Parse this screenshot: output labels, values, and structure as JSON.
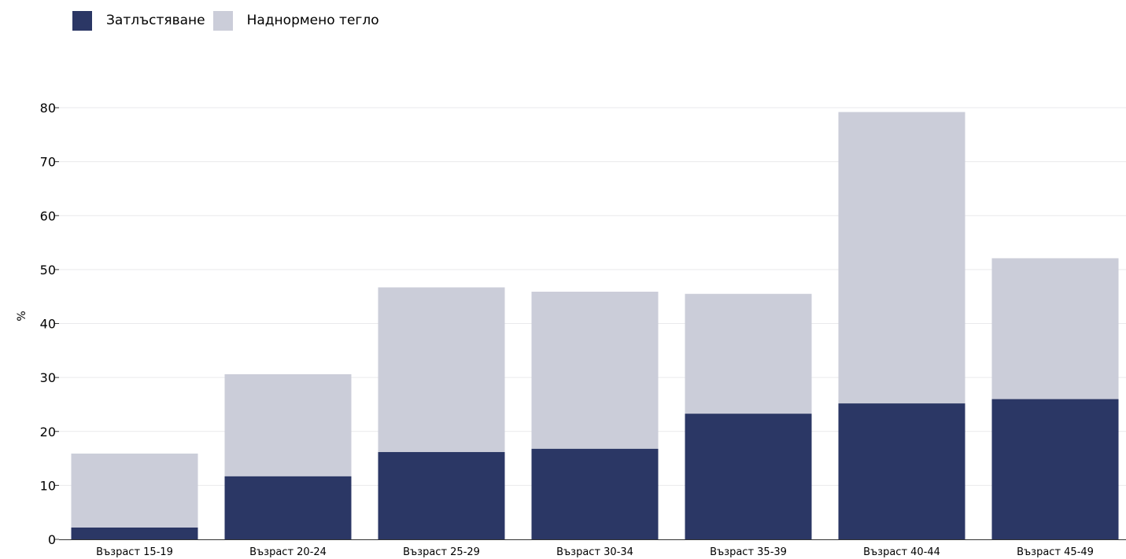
{
  "chart_data": {
    "type": "bar",
    "stacked": true,
    "categories": [
      "Възраст 15-19",
      "Възраст 20-24",
      "Възраст 25-29",
      "Възраст 30-34",
      "Възраст 35-39",
      "Възраст 40-44",
      "Възраст 45-49"
    ],
    "series": [
      {
        "name": "Затлъстяване",
        "color": "#2b3765",
        "values": [
          2.2,
          11.7,
          16.2,
          16.8,
          23.3,
          25.2,
          26.0
        ]
      },
      {
        "name": "Наднормено тегло",
        "color": "#cbcdd9",
        "values": [
          13.7,
          18.9,
          30.5,
          29.1,
          22.2,
          54.0,
          26.1
        ]
      }
    ],
    "ylabel": "%",
    "xlabel": "",
    "ylim": [
      0,
      80
    ],
    "yticks": [
      0,
      10,
      20,
      30,
      40,
      50,
      60,
      70,
      80
    ],
    "grid": true,
    "legend_position": "top-left"
  }
}
